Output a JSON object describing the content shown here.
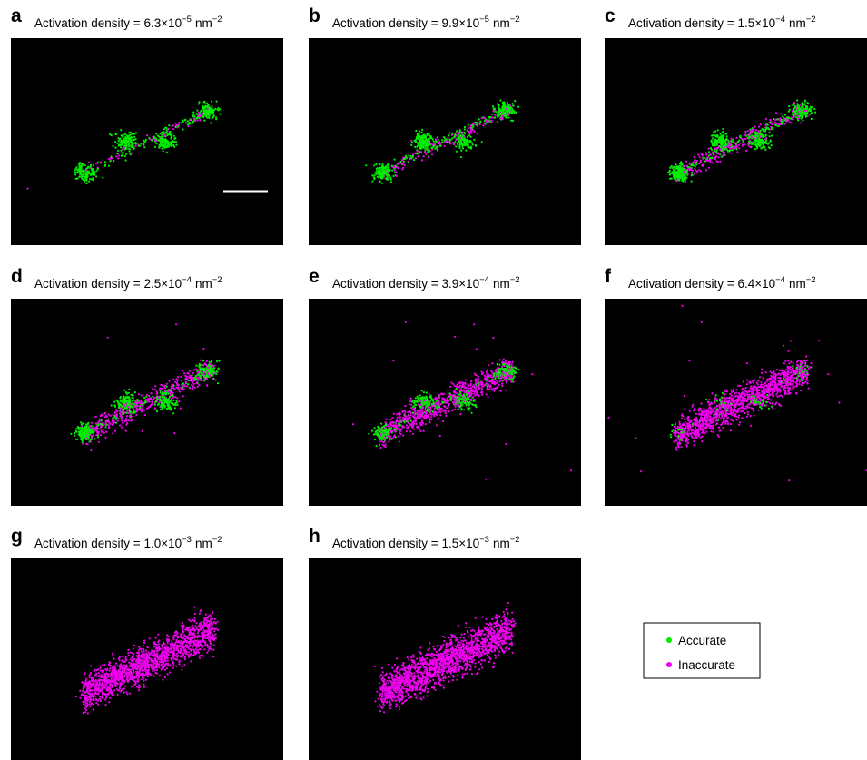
{
  "panels": [
    {
      "label": "a",
      "title": "Activation density = 6.3×10",
      "exponent": "−5",
      "unit": "nm",
      "unit_exponent": "−2"
    },
    {
      "label": "b",
      "title": "Activation density = 9.9×10",
      "exponent": "−5",
      "unit": "nm",
      "unit_exponent": "−2"
    },
    {
      "label": "c",
      "title": "Activation density = 1.5×10",
      "exponent": "−4",
      "unit": "nm",
      "unit_exponent": "−2"
    },
    {
      "label": "d",
      "title": "Activation density = 2.5×10",
      "exponent": "−4",
      "unit": "nm",
      "unit_exponent": "−2"
    },
    {
      "label": "e",
      "title": "Activation density = 3.9×10",
      "exponent": "−4",
      "unit": "nm",
      "unit_exponent": "−2"
    },
    {
      "label": "f",
      "title": "Activation density = 6.4×10",
      "exponent": "−4",
      "unit": "nm",
      "unit_exponent": "−2"
    },
    {
      "label": "g",
      "title": "Activation density = 1.0×10",
      "exponent": "−3",
      "unit": "nm",
      "unit_exponent": "−2"
    },
    {
      "label": "h",
      "title": "Activation density = 1.5×10",
      "exponent": "−3",
      "unit": "nm",
      "unit_exponent": "−2"
    }
  ],
  "legend": [
    "Accurate",
    "Inaccurate"
  ]
}
